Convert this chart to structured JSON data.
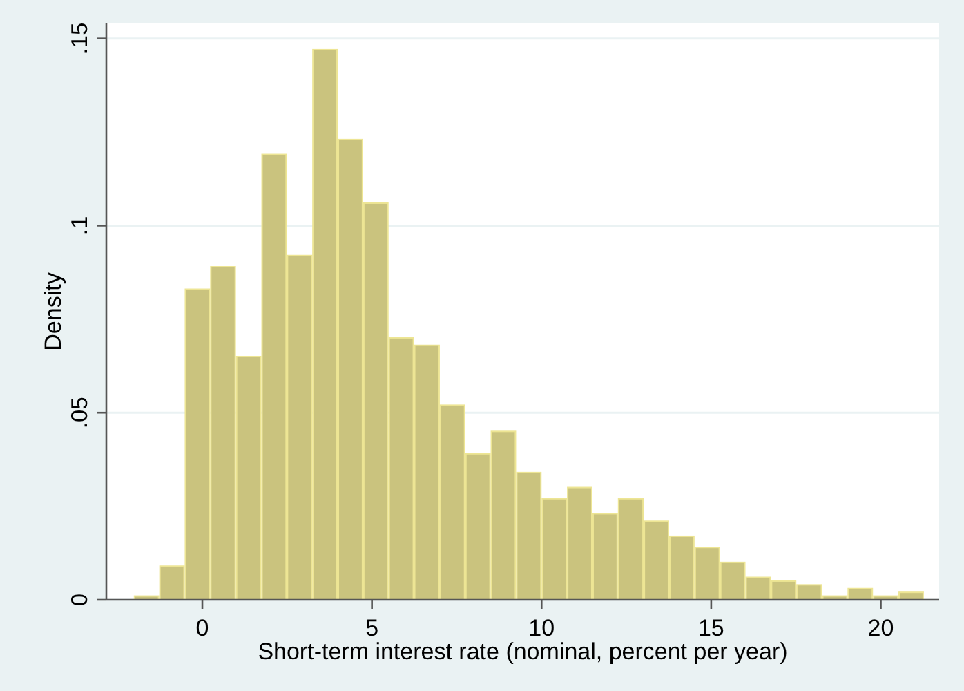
{
  "chart_data": {
    "type": "histogram",
    "xlabel": "Short-term interest rate (nominal, percent per year)",
    "ylabel": "Density",
    "bins": [
      -2.02,
      -1.27,
      -0.52,
      0.23,
      0.99,
      1.74,
      2.49,
      3.24,
      3.99,
      4.74,
      5.49,
      6.24,
      7.0,
      7.75,
      8.5,
      9.25,
      10.0,
      10.75,
      11.5,
      12.25,
      13.01,
      13.76,
      14.51,
      15.26,
      16.01,
      16.76,
      17.51,
      18.27,
      19.02,
      19.77,
      20.52,
      21.27
    ],
    "values": [
      0.001,
      0.009,
      0.083,
      0.089,
      0.065,
      0.119,
      0.092,
      0.147,
      0.123,
      0.106,
      0.07,
      0.068,
      0.052,
      0.039,
      0.045,
      0.034,
      0.027,
      0.03,
      0.023,
      0.027,
      0.021,
      0.017,
      0.014,
      0.01,
      0.006,
      0.005,
      0.004,
      0.001,
      0.003,
      0.001,
      0.002
    ],
    "color": "#cac37e",
    "xlim": [
      -2.83,
      21.72
    ],
    "ylim": [
      0,
      0.154
    ],
    "xticks": [
      0,
      5,
      10,
      15,
      20
    ],
    "yticks": [
      0,
      {
        "value": 0.05,
        "label": ".05"
      },
      {
        "value": 0.1,
        "label": ".1"
      },
      {
        "value": 0.15,
        "label": ".15"
      }
    ],
    "grid": "y"
  }
}
